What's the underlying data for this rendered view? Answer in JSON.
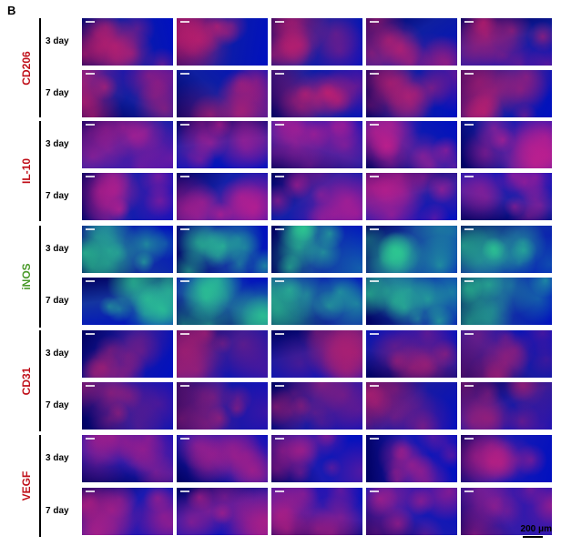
{
  "panel_label": "B",
  "markers": [
    {
      "name": "CD206",
      "color": "#c0101a"
    },
    {
      "name": "IL-10",
      "color": "#c0101a"
    },
    {
      "name": "iNOS",
      "color": "#4a9a2a"
    },
    {
      "name": "CD31",
      "color": "#c0101a"
    },
    {
      "name": "VEGF",
      "color": "#c0101a"
    }
  ],
  "timepoints": [
    "3 day",
    "7 day"
  ],
  "scale_bar": "200 μm",
  "tile_palettes": {
    "CD206": {
      "base": "#0f1fa0",
      "spot": "#d0206a"
    },
    "IL-10": {
      "base": "#1420a8",
      "spot": "#d0208a"
    },
    "iNOS": {
      "base": "#1435a0",
      "spot": "#30d890"
    },
    "CD31": {
      "base": "#1a1aa0",
      "spot": "#b02070"
    },
    "VEGF": {
      "base": "#1a1ab0",
      "spot": "#c02080"
    }
  }
}
